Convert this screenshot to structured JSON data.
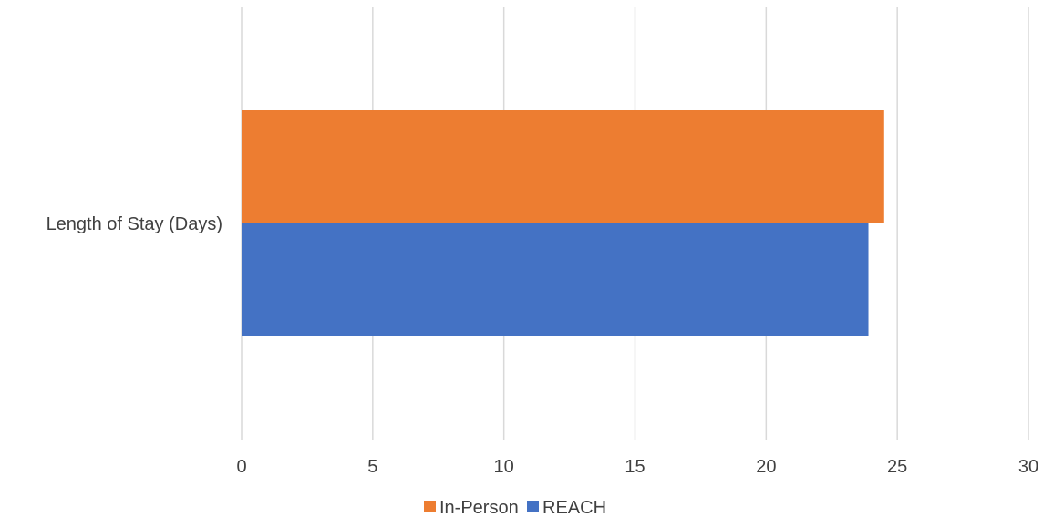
{
  "chart_data": {
    "type": "bar",
    "orientation": "horizontal",
    "categories": [
      "Length of Stay (Days)"
    ],
    "series": [
      {
        "name": "REACH",
        "values": [
          23.9
        ],
        "color": "#4472C4"
      },
      {
        "name": "In-Person",
        "values": [
          24.5
        ],
        "color": "#ED7D31"
      }
    ],
    "xlim": [
      0,
      30
    ],
    "x_ticks": [
      "0",
      "5",
      "10",
      "15",
      "20",
      "25",
      "30"
    ],
    "grid": true,
    "gridline_color": "#D9D9D9",
    "legend_position": "bottom",
    "legend_order": [
      "In-Person",
      "REACH"
    ],
    "title": "",
    "xlabel": "",
    "ylabel": ""
  }
}
